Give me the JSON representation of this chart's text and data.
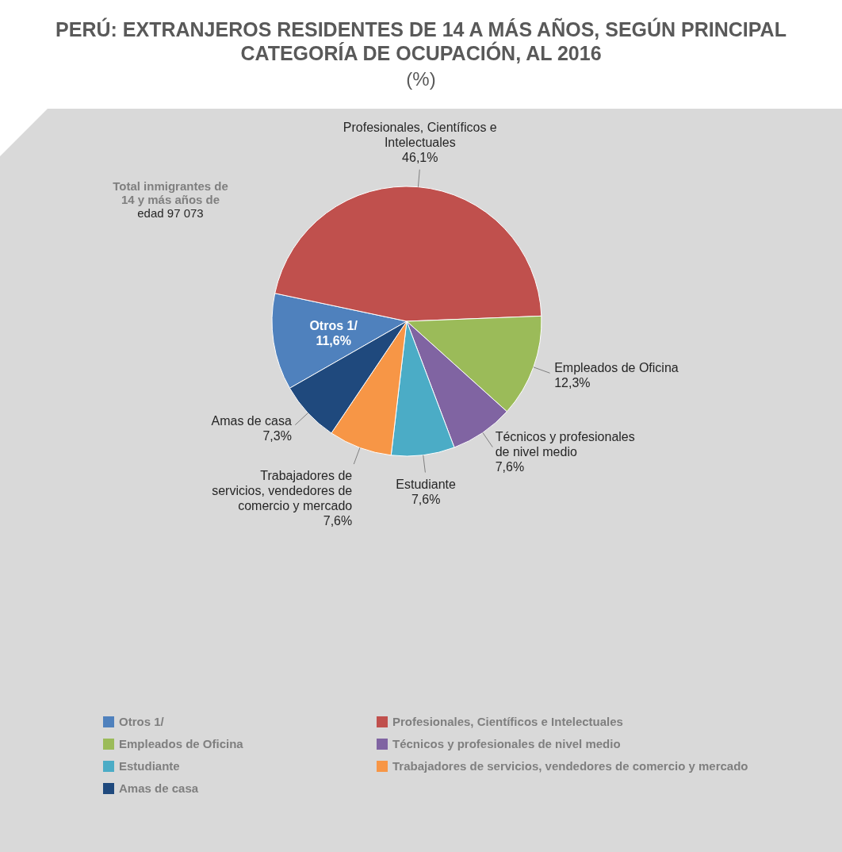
{
  "chart_data": {
    "type": "pie",
    "title": "PERÚ: EXTRANJEROS RESIDENTES DE 14 A MÁS AÑOS, SEGÚN PRINCIPAL CATEGORÍA DE OCUPACIÓN, AL 2016",
    "subtitle": "(%)",
    "categories": [
      "Otros 1/",
      "Profesionales, Científicos e Intelectuales",
      "Empleados de Oficina",
      "Técnicos y profesionales de nivel medio",
      "Estudiante",
      "Trabajadores de servicios, vendedores de comercio y mercado",
      "Amas de casa"
    ],
    "values": [
      11.6,
      46.1,
      12.3,
      7.6,
      7.6,
      7.6,
      7.3
    ],
    "value_labels": [
      "11,6%",
      "46,1%",
      "12,3%",
      "7,6%",
      "7,6%",
      "7,6%",
      "7,3%"
    ],
    "colors": [
      "#4f81bd",
      "#c0504d",
      "#9bbb59",
      "#8064a2",
      "#4bacc6",
      "#f79646",
      "#1f497d"
    ],
    "annotations": [
      "Total inmigrantes de 14 y más años de edad 97 073"
    ],
    "legend": "bottom"
  }
}
